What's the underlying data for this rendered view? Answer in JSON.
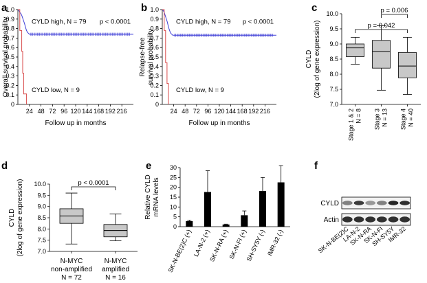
{
  "chart_data": [
    {
      "panel": "a",
      "type": "line",
      "title": "",
      "xlabel": "Follow up in months",
      "ylabel": "Overall survival probability",
      "xlim": [
        0,
        240
      ],
      "ylim": [
        0,
        1.0
      ],
      "xticks": [
        24,
        48,
        72,
        96,
        120,
        144,
        168,
        192,
        216
      ],
      "yticks": [
        0,
        0.1,
        0.2,
        0.3,
        0.4,
        0.5,
        0.6,
        0.7,
        0.8,
        0.9,
        1.0
      ],
      "ytick_labels": [
        "0",
        "0.1",
        "0.2",
        "0.3",
        "0.4",
        "0.5",
        "0.6",
        "0.7",
        "0.8",
        "0.9",
        "1.0"
      ],
      "series": [
        {
          "name": "CYLD high, N = 79",
          "color": "#3b3bd6",
          "x": [
            0,
            2,
            4,
            6,
            8,
            10,
            12,
            14,
            16,
            18,
            20,
            24,
            240
          ],
          "y": [
            1.0,
            0.99,
            0.97,
            0.96,
            0.94,
            0.91,
            0.88,
            0.85,
            0.81,
            0.78,
            0.76,
            0.74,
            0.74
          ]
        },
        {
          "name": "CYLD low, N = 9",
          "color": "#d84a4a",
          "x": [
            0,
            4,
            4,
            8,
            8,
            10,
            10,
            12,
            12,
            18,
            18
          ],
          "y": [
            1.0,
            1.0,
            0.78,
            0.78,
            0.56,
            0.56,
            0.33,
            0.33,
            0.11,
            0.11,
            0
          ]
        }
      ],
      "legend_text": [
        "CYLD high, N = 79",
        "CYLD low, N = 9"
      ],
      "annotation": "p < 0.0001"
    },
    {
      "panel": "b",
      "type": "line",
      "title": "",
      "xlabel": "Follow up in months",
      "ylabel_line1": "Relapse-free",
      "ylabel_line2": "survival probability",
      "xlim": [
        0,
        240
      ],
      "ylim": [
        0,
        1.0
      ],
      "xticks": [
        24,
        48,
        72,
        96,
        120,
        144,
        168,
        192,
        216
      ],
      "yticks": [
        0,
        0.1,
        0.2,
        0.3,
        0.4,
        0.5,
        0.6,
        0.7,
        0.8,
        0.9,
        1.0
      ],
      "ytick_labels": [
        "0",
        "0.1",
        "0.2",
        "0.3",
        "0.4",
        "0.5",
        "0.6",
        "0.7",
        "0.8",
        "0.9",
        "1.0"
      ],
      "series": [
        {
          "name": "CYLD high, N = 79",
          "color": "#3b3bd6",
          "x": [
            0,
            2,
            4,
            6,
            8,
            10,
            12,
            14,
            16,
            18,
            22,
            240
          ],
          "y": [
            1.0,
            0.99,
            0.97,
            0.94,
            0.91,
            0.88,
            0.84,
            0.8,
            0.77,
            0.75,
            0.73,
            0.73
          ]
        },
        {
          "name": "CYLD low, N = 9",
          "color": "#d84a4a",
          "x": [
            0,
            4,
            4,
            7,
            7,
            10,
            10,
            13,
            13
          ],
          "y": [
            1.0,
            1.0,
            0.78,
            0.78,
            0.44,
            0.44,
            0.22,
            0.22,
            0
          ]
        }
      ],
      "legend_text": [
        "CYLD high, N = 79",
        "CYLD low, N = 9"
      ],
      "annotation": "p < 0.0001"
    },
    {
      "panel": "c",
      "type": "box",
      "ylabel_line1": "CYLD",
      "ylabel_line2": "(2log of gene expression)",
      "ylim": [
        7.0,
        10.0
      ],
      "yticks": [
        7.0,
        7.5,
        8.0,
        8.5,
        9.0,
        9.5,
        10.0
      ],
      "ytick_labels": [
        "7.0",
        "7.5",
        "8.0",
        "8.5",
        "9.0",
        "9.5",
        "10.0"
      ],
      "categories": [
        {
          "line1": "Stage 1 & 2",
          "line2": "N = 8"
        },
        {
          "line1": "Stage 3",
          "line2": "N = 13"
        },
        {
          "line1": "Stage 4",
          "line2": "N = 40"
        }
      ],
      "boxes": [
        {
          "min": 8.33,
          "q1": 8.58,
          "median": 8.87,
          "q3": 9.0,
          "max": 9.22
        },
        {
          "min": 7.47,
          "q1": 8.2,
          "median": 8.75,
          "q3": 9.12,
          "max": 9.6
        },
        {
          "min": 7.33,
          "q1": 7.88,
          "median": 8.27,
          "q3": 8.72,
          "max": 9.22
        }
      ],
      "comparisons": [
        {
          "from": 0,
          "to": 2,
          "label": "p = 0.042"
        },
        {
          "from": 1,
          "to": 2,
          "label": "p = 0.006"
        }
      ]
    },
    {
      "panel": "d",
      "type": "box",
      "ylabel_line1": "CYLD",
      "ylabel_line2": "(2log of gene expression)",
      "ylim": [
        7.0,
        10.0
      ],
      "yticks": [
        7.0,
        7.5,
        8.0,
        8.5,
        9.0,
        9.5,
        10.0
      ],
      "ytick_labels": [
        "7.0",
        "7.5",
        "8.0",
        "8.5",
        "9.0",
        "9.5",
        "10.0"
      ],
      "categories": [
        {
          "line1": "N-MYC",
          "line2": "non-amplified",
          "line3": "N = 72"
        },
        {
          "line1": "N-MYC",
          "line2": "amplified",
          "line3": "N = 16"
        }
      ],
      "boxes": [
        {
          "min": 7.33,
          "q1": 8.25,
          "median": 8.58,
          "q3": 8.9,
          "max": 9.6
        },
        {
          "min": 7.47,
          "q1": 7.65,
          "median": 7.93,
          "q3": 8.2,
          "max": 8.67
        }
      ],
      "comparisons": [
        {
          "from": 0,
          "to": 1,
          "label": "p < 0.0001"
        }
      ]
    },
    {
      "panel": "e",
      "type": "bar",
      "ylabel_line1": "Relative CYLD",
      "ylabel_line2": "mRNA levels",
      "ylim": [
        0,
        30
      ],
      "yticks": [
        0,
        5,
        10,
        15,
        20,
        25,
        30
      ],
      "ytick_labels": [
        "0",
        "5",
        "10",
        "15",
        "20",
        "25",
        "30"
      ],
      "categories": [
        "SK-N-BE(2)C (+)",
        "LA-N-2 (+)",
        "SK-N-RA (+)",
        "SK-N-FI (+)",
        "SH-SY5Y (-)",
        "IMR-32 (-)"
      ],
      "values": [
        2.8,
        17.6,
        1.1,
        5.8,
        18.1,
        22.5
      ],
      "errors": [
        0.5,
        10.8,
        0.2,
        2.2,
        6.9,
        8.5
      ]
    },
    {
      "panel": "f",
      "type": "blot",
      "rows": [
        "CYLD",
        "Actin"
      ],
      "lanes": [
        "SK-N-BE(2)C",
        "LA-N-2",
        "SK-N-RA",
        "SK-N-FI",
        "SH-SY5Y",
        "IMR-32"
      ],
      "band_intensity": {
        "CYLD": [
          0.55,
          0.85,
          0.45,
          0.55,
          0.95,
          0.9
        ],
        "Actin": [
          0.9,
          0.9,
          0.9,
          0.9,
          0.9,
          0.9
        ]
      }
    }
  ]
}
